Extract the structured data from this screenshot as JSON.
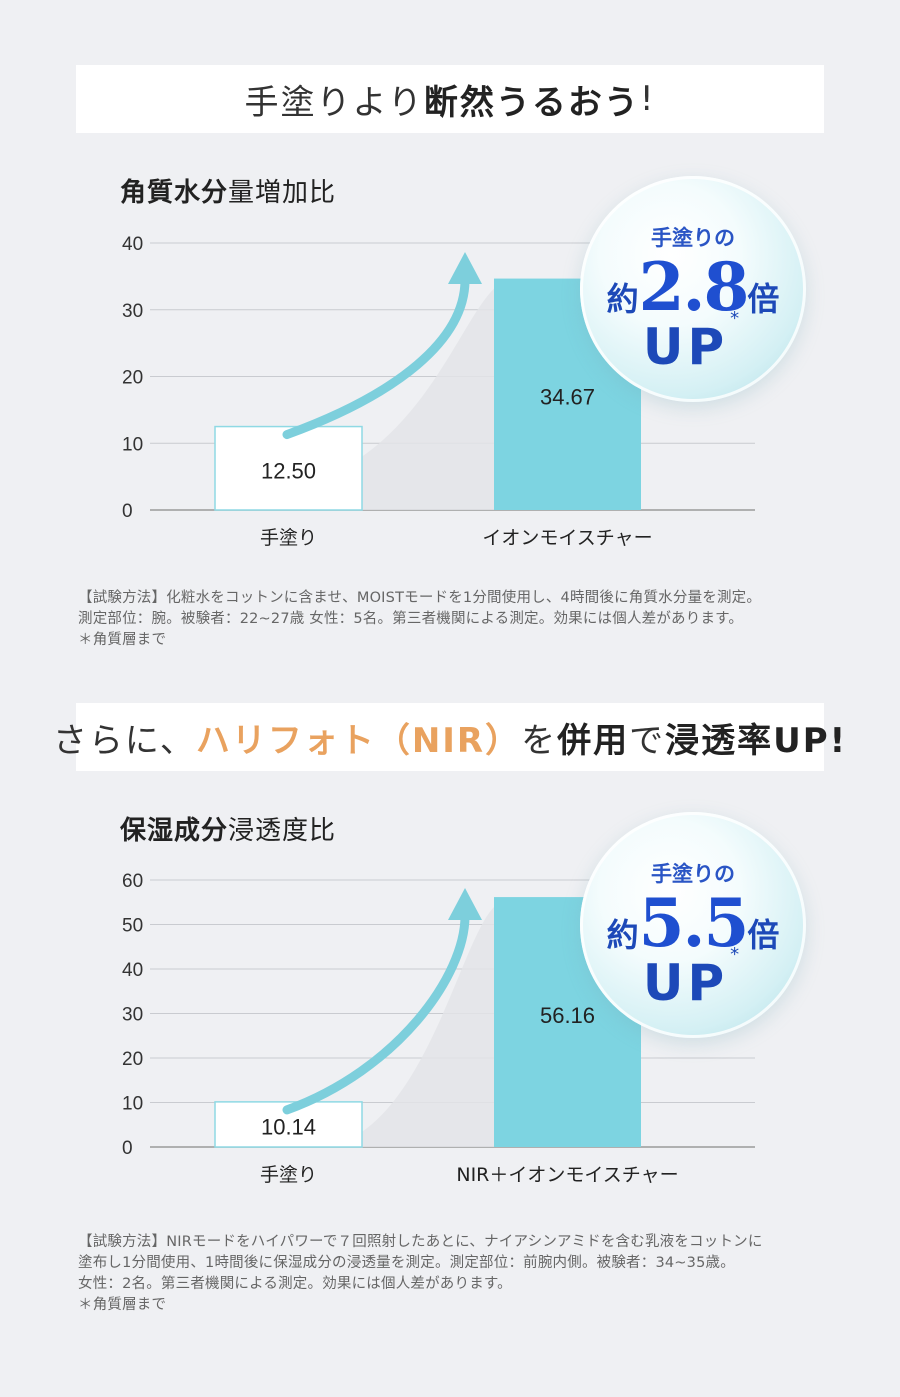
{
  "banner1": {
    "part1": "手塗りより",
    "part2": "断然うるおう",
    "part3": "!"
  },
  "chart1": {
    "title_bold": "角質水分",
    "title_rest": "量増加比",
    "bubble": {
      "top": "手塗りの",
      "prefix": "約",
      "number": "2.8",
      "suffix": "倍",
      "up": "UP",
      "asterisk": "*"
    }
  },
  "note1": {
    "line1": "【試験方法】化粧水をコットンに含ませ、MOISTモードを1分間使用し、4時間後に角質水分量を測定。",
    "line2": "測定部位：腕。被験者：22~27歳 女性：5名。第三者機関による測定。効果には個人差があります。",
    "line3": "＊角質層まで"
  },
  "banner2": {
    "part1": "さらに、",
    "part2": "ハリフォト（NIR）",
    "part3": "を",
    "part4": "併用",
    "part5": "で",
    "part6": "浸透率UP!"
  },
  "chart2": {
    "title_bold": "保湿成分",
    "title_rest": "浸透度比",
    "bubble": {
      "top": "手塗りの",
      "prefix": "約",
      "number": "5.5",
      "suffix": "倍",
      "up": "UP",
      "asterisk": "*"
    }
  },
  "note2": {
    "line1": "【試験方法】NIRモードをハイパワーで７回照射したあとに、ナイアシンアミドを含む乳液をコットンに",
    "line2": "塗布し1分間使用、1時間後に保湿成分の浸透量を測定。測定部位：前腕内側。被験者：34~35歳。",
    "line3": "女性：2名。第三者機関による測定。効果には個人差があります。",
    "line4": "＊角質層まで"
  },
  "colors": {
    "bar_highlight": "#7dd4e1",
    "bar_plain": "#ffffff",
    "bar_plain_border": "#8fd9e4",
    "arrow": "#7dcfdc",
    "accent": "#e9a25f",
    "bubble_text": "#1d49b8"
  },
  "chart_data": [
    {
      "type": "bar",
      "categories": [
        "手塗り",
        "イオンモイスチャー"
      ],
      "values": [
        12.5,
        34.67
      ],
      "value_labels": [
        "12.50",
        "34.67"
      ],
      "yticks": [
        "0",
        "10",
        "20",
        "30",
        "40"
      ],
      "ylim": [
        0,
        40
      ],
      "grid": true
    },
    {
      "type": "bar",
      "categories": [
        "手塗り",
        "NIR＋イオンモイスチャー"
      ],
      "values": [
        10.14,
        56.16
      ],
      "value_labels": [
        "10.14",
        "56.16"
      ],
      "yticks": [
        "0",
        "10",
        "20",
        "30",
        "40",
        "50",
        "60"
      ],
      "ylim": [
        0,
        60
      ],
      "grid": true
    }
  ]
}
